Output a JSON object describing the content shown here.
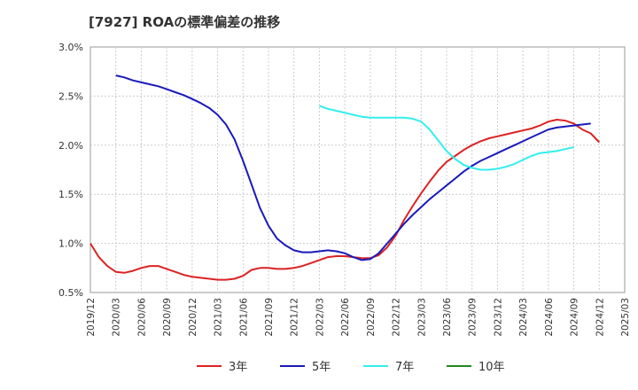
{
  "chart_data": {
    "type": "line",
    "title": "[7927]  ROAの標準偏差の推移",
    "xlabel": "",
    "ylabel": "",
    "ylim": [
      0.5,
      3.0
    ],
    "y_tick_labels": [
      "3.0%",
      "2.5%",
      "2.0%",
      "1.5%",
      "1.0%",
      "0.5%"
    ],
    "y_tick_values": [
      3.0,
      2.5,
      2.0,
      1.5,
      1.0,
      0.5
    ],
    "x_tick_labels": [
      "2019/12",
      "2020/03",
      "2020/06",
      "2020/09",
      "2020/12",
      "2021/03",
      "2021/06",
      "2021/09",
      "2021/12",
      "2022/03",
      "2022/06",
      "2022/09",
      "2022/12",
      "2023/03",
      "2023/06",
      "2023/09",
      "2023/12",
      "2024/03",
      "2024/06",
      "2024/09",
      "2024/12",
      "2025/03"
    ],
    "grid": true,
    "legend_position": "bottom",
    "series": [
      {
        "name": "3年",
        "color": "#dd2222",
        "start": "2019/12",
        "values": [
          1.0,
          0.86,
          0.77,
          0.71,
          0.7,
          0.72,
          0.75,
          0.77,
          0.77,
          0.74,
          0.71,
          0.68,
          0.66,
          0.65,
          0.64,
          0.63,
          0.63,
          0.64,
          0.67,
          0.73,
          0.75,
          0.75,
          0.74,
          0.74,
          0.75,
          0.77,
          0.8,
          0.83,
          0.86,
          0.87,
          0.87,
          0.86,
          0.85,
          0.85,
          0.88,
          0.96,
          1.08,
          1.24,
          1.38,
          1.51,
          1.63,
          1.74,
          1.83,
          1.89,
          1.95,
          2.0,
          2.04,
          2.07,
          2.09,
          2.11,
          2.13,
          2.15,
          2.17,
          2.2,
          2.24,
          2.26,
          2.25,
          2.22,
          2.16,
          2.12,
          2.03
        ]
      },
      {
        "name": "5年",
        "color": "#1a1abb",
        "start": "2020/03",
        "values": [
          2.71,
          2.69,
          2.66,
          2.64,
          2.62,
          2.6,
          2.57,
          2.54,
          2.51,
          2.47,
          2.43,
          2.38,
          2.31,
          2.21,
          2.06,
          1.84,
          1.6,
          1.36,
          1.18,
          1.05,
          0.98,
          0.93,
          0.91,
          0.91,
          0.92,
          0.93,
          0.92,
          0.9,
          0.86,
          0.83,
          0.84,
          0.9,
          1.0,
          1.1,
          1.2,
          1.29,
          1.37,
          1.45,
          1.52,
          1.59,
          1.66,
          1.73,
          1.79,
          1.84,
          1.88,
          1.92,
          1.96,
          2.0,
          2.04,
          2.08,
          2.12,
          2.16,
          2.18,
          2.19,
          2.2,
          2.21,
          2.22
        ]
      },
      {
        "name": "7年",
        "color": "#33eeee",
        "start": "2022/03",
        "values": [
          2.4,
          2.37,
          2.35,
          2.33,
          2.31,
          2.29,
          2.28,
          2.28,
          2.28,
          2.28,
          2.28,
          2.27,
          2.24,
          2.16,
          2.05,
          1.94,
          1.86,
          1.8,
          1.77,
          1.75,
          1.75,
          1.76,
          1.78,
          1.81,
          1.85,
          1.89,
          1.92,
          1.93,
          1.94,
          1.96,
          1.98
        ]
      },
      {
        "name": "10年",
        "color": "#228822",
        "start": "2025/03",
        "values": []
      }
    ]
  }
}
